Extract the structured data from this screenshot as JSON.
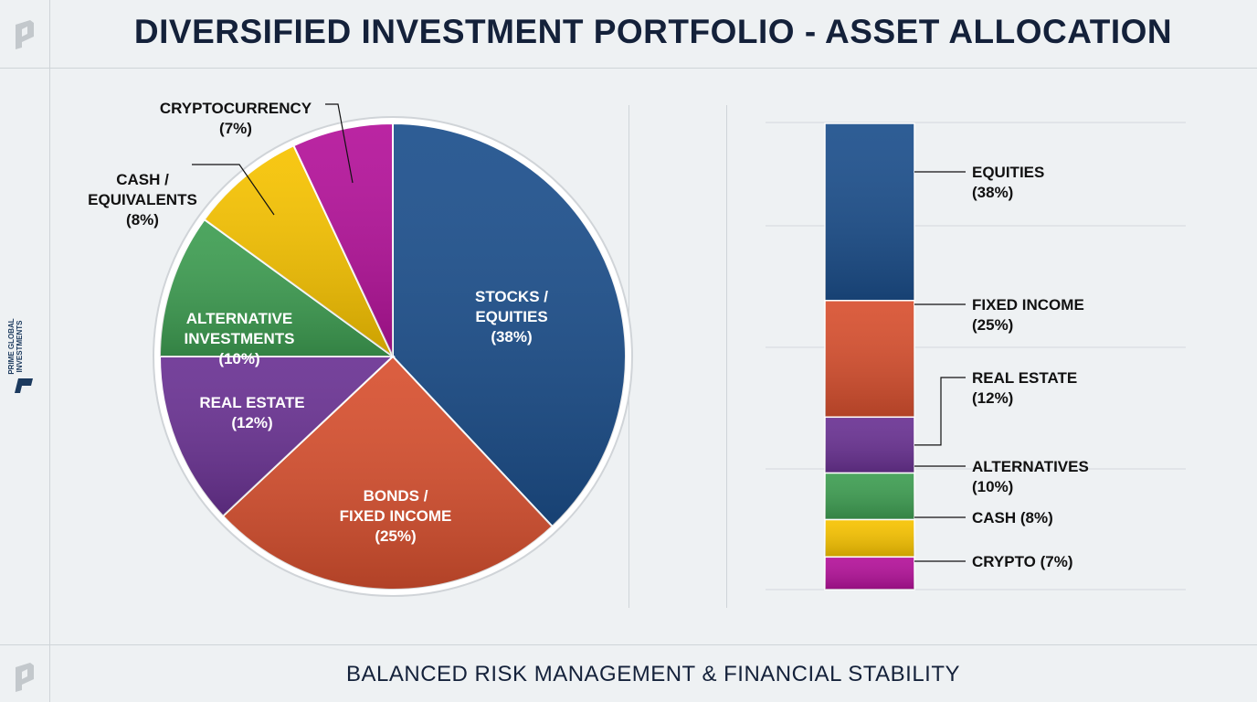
{
  "header": {
    "title": "DIVERSIFIED INVESTMENT PORTFOLIO - ASSET ALLOCATION"
  },
  "footer": {
    "tagline": "BALANCED RISK MANAGEMENT & FINANCIAL STABILITY"
  },
  "brand": {
    "name": "PRIME GLOBAL INVESTMENTS"
  },
  "chart_data": [
    {
      "type": "pie",
      "categories": [
        "STOCKS / EQUITIES",
        "BONDS / FIXED INCOME",
        "REAL ESTATE",
        "ALTERNATIVE INVESTMENTS",
        "CASH / EQUIVALENTS",
        "CRYPTOCURRENCY"
      ],
      "values": [
        38,
        25,
        12,
        10,
        8,
        7
      ],
      "labels": [
        [
          "STOCKS /",
          "EQUITIES",
          "(38%)"
        ],
        [
          "BONDS /",
          "FIXED INCOME",
          "(25%)"
        ],
        [
          "REAL ESTATE",
          "(12%)"
        ],
        [
          "ALTERNATIVE",
          "INVESTMENTS",
          "(10%)"
        ],
        [
          "CASH /",
          "EQUIVALENTS",
          "(8%)"
        ],
        [
          "CRYPTOCURRENCY",
          "(7%)"
        ]
      ],
      "colors": [
        "#1c4f8c",
        "#d8502f",
        "#6a3293",
        "#3e9e52",
        "#f7c300",
        "#b4129a"
      ]
    },
    {
      "type": "bar",
      "stacked": true,
      "categories": [
        "EQUITIES",
        "FIXED INCOME",
        "REAL ESTATE",
        "ALTERNATIVES",
        "CASH",
        "CRYPTO"
      ],
      "values": [
        38,
        25,
        12,
        10,
        8,
        7
      ],
      "labels": [
        [
          "EQUITIES",
          "(38%)"
        ],
        [
          "FIXED INCOME",
          "(25%)"
        ],
        [
          "REAL ESTATE",
          "(12%)"
        ],
        [
          "ALTERNATIVES",
          "(10%)"
        ],
        [
          "CASH (8%)"
        ],
        [
          "CRYPTO (7%)"
        ]
      ],
      "colors": [
        "#1c4f8c",
        "#d8502f",
        "#6a3293",
        "#3e9e52",
        "#f7c300",
        "#b4129a"
      ]
    }
  ]
}
